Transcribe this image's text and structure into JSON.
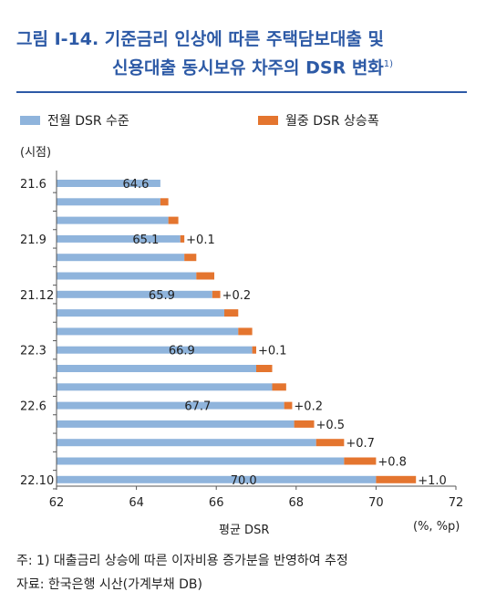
{
  "title": {
    "line1": "그림 Ⅰ-14. 기준금리 인상에 따른 주택담보대출 및",
    "line2": "신용대출 동시보유 차주의 DSR 변화",
    "footnote_mark": "1)"
  },
  "colors": {
    "base": "#8fb4dc",
    "increase": "#e4752f",
    "title": "#2d5aa6"
  },
  "chart_data": {
    "type": "bar",
    "orientation": "horizontal",
    "stacked": true,
    "y_axis_label": "(시점)",
    "x_axis_label": "평균 DSR",
    "x_unit": "(%, %p)",
    "xlim": [
      62,
      72
    ],
    "x_ticks": [
      "62",
      "64",
      "66",
      "68",
      "70",
      "72"
    ],
    "legend": {
      "placement": "top",
      "items": [
        "전월 DSR 수준",
        "월중 DSR 상승폭"
      ]
    },
    "rows": [
      {
        "label": "21.6",
        "base": 64.6,
        "inc": 0.0
      },
      {
        "label": "",
        "base": 64.6,
        "inc": 0.2
      },
      {
        "label": "",
        "base": 64.8,
        "inc": 0.25
      },
      {
        "label": "21.9",
        "base": 65.1,
        "inc": 0.1
      },
      {
        "label": "",
        "base": 65.2,
        "inc": 0.3
      },
      {
        "label": "",
        "base": 65.5,
        "inc": 0.45
      },
      {
        "label": "21.12",
        "base": 65.9,
        "inc": 0.2
      },
      {
        "label": "",
        "base": 66.2,
        "inc": 0.35
      },
      {
        "label": "",
        "base": 66.55,
        "inc": 0.35
      },
      {
        "label": "22.3",
        "base": 66.9,
        "inc": 0.1
      },
      {
        "label": "",
        "base": 67.0,
        "inc": 0.4
      },
      {
        "label": "",
        "base": 67.4,
        "inc": 0.35
      },
      {
        "label": "22.6",
        "base": 67.7,
        "inc": 0.2
      },
      {
        "label": "",
        "base": 67.95,
        "inc": 0.5
      },
      {
        "label": "",
        "base": 68.5,
        "inc": 0.7
      },
      {
        "label": "",
        "base": 69.2,
        "inc": 0.8
      },
      {
        "label": "22.10",
        "base": 70.0,
        "inc": 1.0
      }
    ],
    "value_labels": [
      {
        "row": 0,
        "text": "64.6"
      },
      {
        "row": 3,
        "text": "65.1"
      },
      {
        "row": 6,
        "text": "65.9"
      },
      {
        "row": 9,
        "text": "66.9"
      },
      {
        "row": 12,
        "text": "67.7"
      },
      {
        "row": 16,
        "text": "70.0"
      }
    ],
    "inc_labels": [
      {
        "row": 3,
        "text": "+0.1"
      },
      {
        "row": 6,
        "text": "+0.2"
      },
      {
        "row": 9,
        "text": "+0.1"
      },
      {
        "row": 12,
        "text": "+0.2"
      },
      {
        "row": 13,
        "text": "+0.5"
      },
      {
        "row": 14,
        "text": "+0.7"
      },
      {
        "row": 15,
        "text": "+0.8"
      },
      {
        "row": 16,
        "text": "+1.0"
      }
    ]
  },
  "notes": {
    "note": "주: 1) 대출금리 상승에 따른 이자비용 증가분을 반영하여 추정",
    "source": "자료: 한국은행 시산(가계부채 DB)"
  }
}
